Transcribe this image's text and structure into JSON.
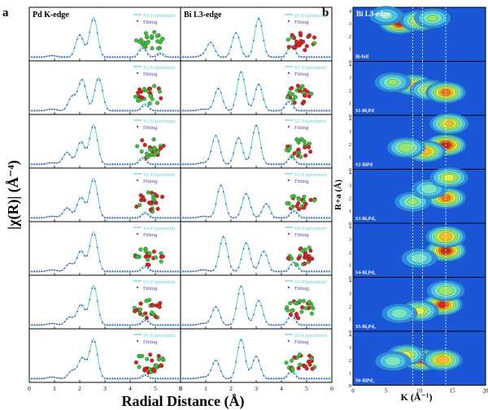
{
  "chart_data": [
    {
      "panel_letter": "a",
      "type": "line",
      "column_titles": [
        "Pd K-edge",
        "Bi L3-edge"
      ],
      "ylabel": "|χ(R)| (Å⁻⁴)",
      "xlabel": "Radial Distance (Å)",
      "xlim": [
        0,
        6
      ],
      "x_ticks": [
        "0",
        "1",
        "2",
        "3",
        "4",
        "5",
        "6"
      ],
      "pd_legend": [
        [
          "Pd-Experiment",
          "Fitting"
        ],
        [
          "S1-Experiment",
          "Fitting"
        ],
        [
          "S3-Experiment",
          "Fitting"
        ],
        [
          "S2-Experiment",
          "Fitting"
        ],
        [
          "S4-Experiment",
          "Fitting"
        ],
        [
          "S5-Experiment",
          "Fitting"
        ],
        [
          "S6-Experiment",
          "Fitting"
        ]
      ],
      "bi_legend": [
        [
          "Bi-Experiment",
          "Fitting"
        ],
        [
          "S1-Experiment",
          "Fitting"
        ],
        [
          "S2-Experiment",
          "Fitting"
        ],
        [
          "S3-Experiment",
          "Fitting"
        ],
        [
          "S4-Experiment",
          "Fitting"
        ],
        [
          "S5-Experiment",
          "Fitting"
        ],
        [
          "S6-Experiment",
          "Fitting"
        ]
      ],
      "pd_peaks": [
        [
          [
            2.0,
            0.55
          ],
          [
            2.55,
            0.95
          ],
          [
            4.5,
            0.25
          ],
          [
            5.2,
            0.12
          ]
        ],
        [
          [
            1.7,
            0.35
          ],
          [
            2.1,
            0.75
          ],
          [
            2.75,
            0.8
          ],
          [
            4.6,
            0.18
          ]
        ],
        [
          [
            1.5,
            0.3
          ],
          [
            2.05,
            0.55
          ],
          [
            2.55,
            0.95
          ],
          [
            4.5,
            0.18
          ]
        ],
        [
          [
            1.5,
            0.25
          ],
          [
            2.05,
            0.5
          ],
          [
            2.55,
            0.95
          ],
          [
            4.6,
            0.15
          ]
        ],
        [
          [
            1.6,
            0.2
          ],
          [
            2.05,
            0.5
          ],
          [
            2.55,
            0.95
          ],
          [
            4.6,
            0.15
          ]
        ],
        [
          [
            1.6,
            0.2
          ],
          [
            2.05,
            0.5
          ],
          [
            2.55,
            0.95
          ],
          [
            4.6,
            0.15
          ]
        ],
        [
          [
            1.7,
            0.2
          ],
          [
            2.1,
            0.5
          ],
          [
            2.55,
            0.95
          ],
          [
            4.6,
            0.12
          ]
        ]
      ],
      "bi_peaks": [
        [
          [
            1.2,
            0.35
          ],
          [
            2.2,
            0.6
          ],
          [
            3.1,
            0.95
          ],
          [
            4.4,
            0.3
          ]
        ],
        [
          [
            1.5,
            0.55
          ],
          [
            2.4,
            0.95
          ],
          [
            3.1,
            0.65
          ],
          [
            4.3,
            0.25
          ]
        ],
        [
          [
            1.4,
            0.7
          ],
          [
            2.3,
            0.65
          ],
          [
            3.0,
            0.95
          ],
          [
            4.4,
            0.2
          ]
        ],
        [
          [
            1.6,
            0.8
          ],
          [
            2.6,
            0.6
          ],
          [
            3.4,
            0.35
          ],
          [
            4.5,
            0.2
          ]
        ],
        [
          [
            1.7,
            0.85
          ],
          [
            2.6,
            0.7
          ],
          [
            3.3,
            0.5
          ],
          [
            4.5,
            0.25
          ]
        ],
        [
          [
            1.4,
            0.45
          ],
          [
            2.4,
            0.95
          ],
          [
            3.1,
            0.6
          ],
          [
            4.4,
            0.25
          ]
        ],
        [
          [
            1.4,
            0.45
          ],
          [
            2.4,
            0.95
          ],
          [
            3.0,
            0.55
          ],
          [
            4.4,
            0.2
          ]
        ]
      ]
    },
    {
      "panel_letter": "b",
      "type": "heatmap",
      "column_title": "Bi L3-edge",
      "xlabel": "K (Å⁻¹)",
      "ylabel": "R+a (Å)",
      "xlim": [
        0,
        20
      ],
      "ylim": [
        0,
        4
      ],
      "x_ticks": [
        "0",
        "5",
        "10",
        "15",
        "20"
      ],
      "y_ticks": [
        "0",
        "1",
        "2",
        "3",
        "4"
      ],
      "dashed_k": [
        9,
        10.5,
        14
      ],
      "rows": [
        {
          "label": "Bi-foil",
          "blobs": [
            [
              7,
              3.0,
              0.95
            ],
            [
              10,
              3.2,
              0.65
            ],
            [
              12,
              3.4,
              0.45
            ],
            [
              5,
              3.6,
              0.35
            ]
          ]
        },
        {
          "label": "S1-Bi₂Pd",
          "blobs": [
            [
              9,
              2.4,
              0.7
            ],
            [
              11.5,
              2.0,
              0.6
            ],
            [
              14,
              1.8,
              0.85
            ],
            [
              6,
              2.6,
              0.45
            ]
          ]
        },
        {
          "label": "S2-BiPd",
          "blobs": [
            [
              14,
              1.9,
              1.0
            ],
            [
              11,
              1.4,
              0.75
            ],
            [
              8,
              1.7,
              0.55
            ],
            [
              14.5,
              3.6,
              0.7
            ]
          ]
        },
        {
          "label": "S3-Bi₂Pd₅",
          "blobs": [
            [
              14,
              2.0,
              0.85
            ],
            [
              9,
              1.7,
              0.45
            ],
            [
              11.5,
              2.7,
              0.4
            ],
            [
              14.5,
              3.6,
              0.6
            ]
          ]
        },
        {
          "label": "S4-Bi₂Pd₅",
          "blobs": [
            [
              14,
              2.1,
              1.0
            ],
            [
              14,
              3.2,
              0.8
            ],
            [
              10,
              1.5,
              0.4
            ]
          ]
        },
        {
          "label": "S5-Bi₂Pd₅",
          "blobs": [
            [
              13.5,
              2.1,
              0.95
            ],
            [
              10,
              1.6,
              0.6
            ],
            [
              14,
              3.2,
              0.55
            ],
            [
              7,
              1.4,
              0.4
            ]
          ]
        },
        {
          "label": "S6-BiPd₃",
          "blobs": [
            [
              10.5,
              2.0,
              0.95
            ],
            [
              13.5,
              2.0,
              0.8
            ],
            [
              8,
              2.4,
              0.6
            ],
            [
              6,
              1.9,
              0.4
            ]
          ]
        }
      ]
    }
  ],
  "colors": {
    "experiment": "#5fd3dc",
    "fitting": "#5a3fb2",
    "pd_atom": "#39c23a",
    "bi_atom": "#d5241f"
  }
}
